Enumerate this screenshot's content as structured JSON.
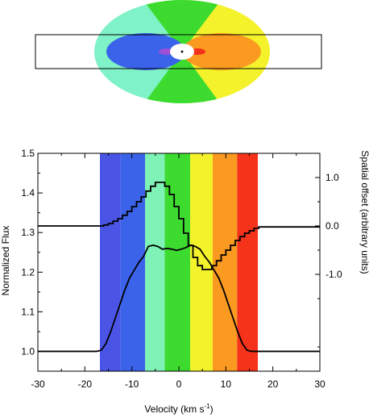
{
  "chart_data": {
    "type": "line",
    "title": "",
    "xlabel": {
      "main": "Velocity (km s",
      "sup": "-1",
      "tail": ")"
    },
    "ylabel_left": "Normalized Flux",
    "ylabel_right": "Spatial offset (arbitrary units)",
    "xlim": [
      -30,
      30
    ],
    "ylim_left": [
      0.95,
      1.5
    ],
    "ylim_right": [
      -3.0,
      1.5
    ],
    "x_ticks": [
      -30,
      -20,
      -10,
      0,
      10,
      20,
      30
    ],
    "x_tick_labels": [
      "-30",
      "-20",
      "-10",
      "0",
      "10",
      "20",
      "30"
    ],
    "y_ticks_left": [
      1.0,
      1.1,
      1.2,
      1.3,
      1.4,
      1.5
    ],
    "y_tick_labels_left": [
      "1.0",
      "1.1",
      "1.2",
      "1.3",
      "1.4",
      "1.5"
    ],
    "y_ticks_right": [
      1.0,
      0.0,
      -1.0
    ],
    "y_tick_labels_right": [
      "1.0",
      "0.0",
      "-1.0"
    ],
    "color_bands": [
      {
        "from": -16.8,
        "to": -12.4,
        "color": "#4a55e6"
      },
      {
        "from": -12.4,
        "to": -7.2,
        "color": "#3a63ea"
      },
      {
        "from": -7.2,
        "to": -3.0,
        "color": "#7ff2b5"
      },
      {
        "from": -3.0,
        "to": 2.4,
        "color": "#3ddb30"
      },
      {
        "from": 2.4,
        "to": 7.2,
        "color": "#f4f22a"
      },
      {
        "from": 7.2,
        "to": 12.4,
        "color": "#fa9a20"
      },
      {
        "from": 12.4,
        "to": 16.8,
        "color": "#f5321a"
      }
    ],
    "series": [
      {
        "axis": "left",
        "style": "line",
        "color": "#000000",
        "x": [
          -30,
          -20,
          -17.5,
          -16.5,
          -15.5,
          -14.5,
          -13.5,
          -12.5,
          -11.5,
          -10.5,
          -9.5,
          -8.5,
          -7.5,
          -6.5,
          -5.5,
          -4.5,
          -3.5,
          -2.5,
          -1.5,
          -0.5,
          0.5,
          1.5,
          2.5,
          3.5,
          4.5,
          5.5,
          6.5,
          7.5,
          8.5,
          9.5,
          10.5,
          11.5,
          12.5,
          13.5,
          14.5,
          15.5,
          16.5,
          17.5,
          20,
          30
        ],
        "y": [
          1.0,
          1.0,
          1.0,
          1.003,
          1.02,
          1.05,
          1.085,
          1.12,
          1.155,
          1.185,
          1.205,
          1.225,
          1.24,
          1.265,
          1.268,
          1.265,
          1.258,
          1.26,
          1.258,
          1.255,
          1.258,
          1.262,
          1.268,
          1.265,
          1.258,
          1.24,
          1.225,
          1.205,
          1.185,
          1.155,
          1.12,
          1.085,
          1.05,
          1.02,
          1.003,
          1.0,
          1.0,
          1.0,
          1.0,
          1.0
        ]
      },
      {
        "axis": "right",
        "style": "step",
        "color": "#000000",
        "x": [
          -30,
          -17,
          -16,
          -15,
          -14,
          -13,
          -12,
          -11,
          -10,
          -9,
          -8,
          -7,
          -6,
          -5,
          -4,
          -3,
          -2,
          -1,
          0,
          1,
          2,
          3,
          4,
          5,
          6,
          7,
          8,
          9,
          10,
          11,
          12,
          13,
          14,
          15,
          16,
          17,
          30
        ],
        "y": [
          0.0,
          0.0,
          0.02,
          0.05,
          0.1,
          0.15,
          0.22,
          0.3,
          0.4,
          0.5,
          0.6,
          0.72,
          0.82,
          0.9,
          0.9,
          0.82,
          0.65,
          0.4,
          0.15,
          -0.15,
          -0.4,
          -0.65,
          -0.82,
          -0.9,
          -0.9,
          -0.82,
          -0.72,
          -0.6,
          -0.5,
          -0.4,
          -0.3,
          -0.22,
          -0.15,
          -0.1,
          -0.05,
          -0.02,
          0.0
        ]
      }
    ]
  },
  "diagram": {
    "outer_colors": {
      "blue_side": "#7ff2c7",
      "green": "#3ddb30",
      "yellow": "#f4f22a"
    },
    "inner_colors": {
      "blue": "#3a63ea",
      "orange": "#fa9a20",
      "purple": "#9b4ed6",
      "red": "#f5321a",
      "center": "#ffffff"
    }
  }
}
